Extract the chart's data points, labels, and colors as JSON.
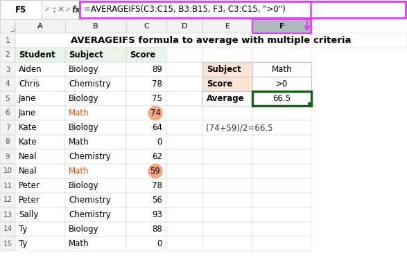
{
  "title": "AVERAGEIFS formula to average with multiple criteria",
  "formula_bar_cell": "F5",
  "formula_bar_text": "=AVERAGEIFS(C3:C15, B3:B15, F3, C3:C15, \">0\")",
  "col_headers": [
    "A",
    "B",
    "C",
    "D",
    "E",
    "F"
  ],
  "main_headers": [
    "Student",
    "Subject",
    "Score"
  ],
  "data_rows": [
    [
      "Aiden",
      "Biology",
      "89"
    ],
    [
      "Chris",
      "Chemistry",
      "78"
    ],
    [
      "Jane",
      "Biology",
      "75"
    ],
    [
      "Jane",
      "Math",
      "74"
    ],
    [
      "Kate",
      "Biology",
      "64"
    ],
    [
      "Kate",
      "Math",
      "0"
    ],
    [
      "Neal",
      "Chemistry",
      "62"
    ],
    [
      "Neal",
      "Math",
      "59"
    ],
    [
      "Peter",
      "Biology",
      "78"
    ],
    [
      "Peter",
      "Chemistry",
      "56"
    ],
    [
      "Sally",
      "Chemistry",
      "93"
    ],
    [
      "Ty",
      "Biology",
      "88"
    ],
    [
      "Ty",
      "Math",
      "0"
    ]
  ],
  "right_rows": [
    [
      "Subject",
      "Math"
    ],
    [
      "Score",
      ">0"
    ],
    [
      "Average",
      "66.5"
    ]
  ],
  "annotation": "(74+59)/2=66.5",
  "header_bg": "#e8f5e9",
  "grid_color": "#cccccc",
  "formula_bar_border": "#e040fb",
  "right_header_bg": "#fce4d6",
  "result_cell_border": "#1a5e20",
  "arrow_color": "#e040fb",
  "bg_color": "#ffffff",
  "highlight_circle_color": "#f4a583",
  "math_text_color": "#e65100",
  "row_header_bg": "#f2f2f2",
  "col_header_bg": "#f2f2f2",
  "col_f_header_bg": "#b0b8c0"
}
